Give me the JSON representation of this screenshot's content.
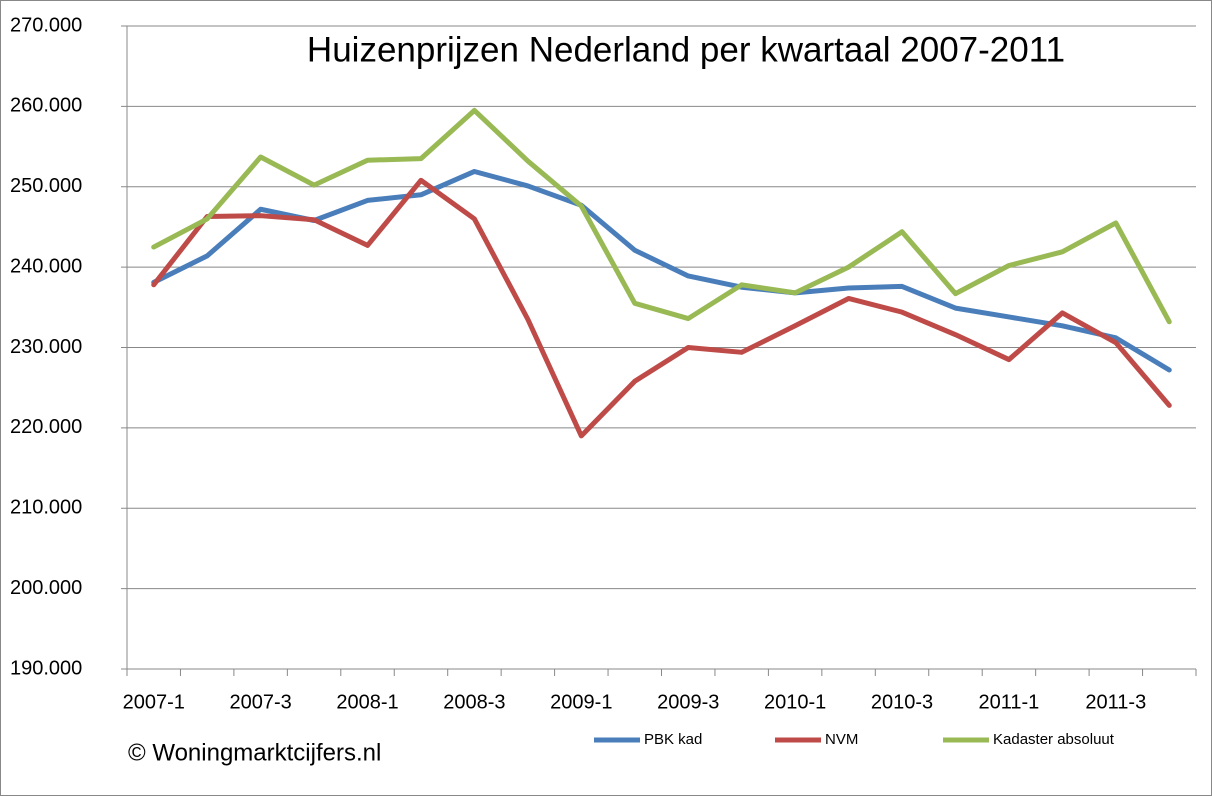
{
  "chart_data": {
    "type": "line",
    "title": "Huizenprijzen Nederland per kwartaal 2007-2011",
    "annotation": "© Woningmarktcijfers.nl",
    "categories": [
      "2007-1",
      null,
      "2007-3",
      null,
      "2008-1",
      null,
      "2008-3",
      null,
      "2009-1",
      null,
      "2009-3",
      null,
      "2010-1",
      null,
      "2010-3",
      null,
      "2011-1",
      null,
      "2011-3",
      null
    ],
    "series": [
      {
        "name": "PBK kad",
        "color": "#4a7ebb",
        "values": [
          238100,
          241400,
          247200,
          245800,
          248300,
          249000,
          251900,
          250100,
          247700,
          242100,
          238900,
          237500,
          236800,
          237400,
          237600,
          234900,
          233800,
          232700,
          231200,
          227200
        ]
      },
      {
        "name": "NVM",
        "color": "#be4b48",
        "values": [
          237800,
          246300,
          246400,
          245900,
          242700,
          250800,
          246000,
          233500,
          219000,
          225800,
          230000,
          229400,
          232700,
          236100,
          234400,
          231600,
          228500,
          234300,
          230600,
          222800
        ]
      },
      {
        "name": "Kadaster absoluut",
        "color": "#98b954",
        "values": [
          242500,
          246000,
          253700,
          250200,
          253300,
          253500,
          259500,
          253200,
          247600,
          235500,
          233600,
          237800,
          236800,
          240000,
          244400,
          236700,
          240200,
          241900,
          245500,
          233200
        ]
      }
    ],
    "ylim": [
      190000,
      270000
    ],
    "yticks": [
      {
        "value": 190000,
        "label": "190.000"
      },
      {
        "value": 200000,
        "label": "200.000"
      },
      {
        "value": 210000,
        "label": "210.000"
      },
      {
        "value": 220000,
        "label": "220.000"
      },
      {
        "value": 230000,
        "label": "230.000"
      },
      {
        "value": 240000,
        "label": "240.000"
      },
      {
        "value": 250000,
        "label": "250.000"
      },
      {
        "value": 260000,
        "label": "260.000"
      },
      {
        "value": 270000,
        "label": "270.000"
      }
    ],
    "grid": true,
    "legend": "bottom"
  }
}
